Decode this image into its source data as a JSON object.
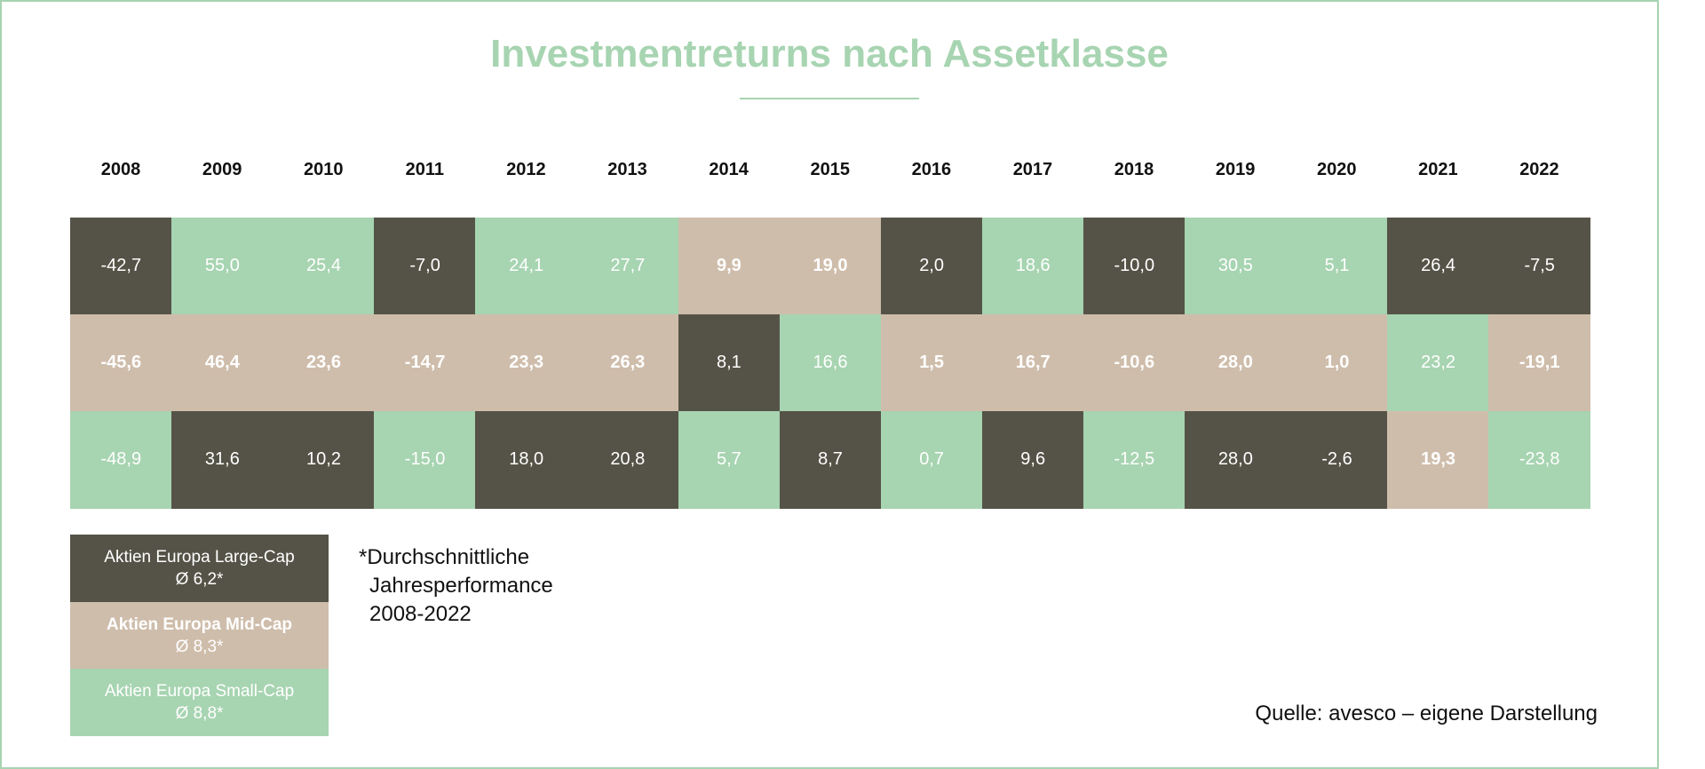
{
  "header": {
    "title": "Investmentreturns nach Assetklasse"
  },
  "assets": [
    {
      "name": "Aktien Europa Large-Cap",
      "average": "Ø 6,2*",
      "color": "#555347",
      "bold": false
    },
    {
      "name": "Aktien Europa Mid-Cap",
      "average": "Ø 8,3*",
      "color": "#cfbdab",
      "bold": true
    },
    {
      "name": "Aktien Europa Small-Cap",
      "average": "Ø 8,8*",
      "color": "#a7d4b1",
      "bold": false
    }
  ],
  "table": {
    "years": [
      "2008",
      "2009",
      "2010",
      "2011",
      "2012",
      "2013",
      "2014",
      "2015",
      "2016",
      "2017",
      "2018",
      "2019",
      "2020",
      "2021",
      "2022"
    ],
    "rows": [
      [
        {
          "text": "-42,7",
          "asset": 0
        },
        {
          "text": "55,0",
          "asset": 2
        },
        {
          "text": "25,4",
          "asset": 2
        },
        {
          "text": "-7,0",
          "asset": 0
        },
        {
          "text": "24,1",
          "asset": 2
        },
        {
          "text": "27,7",
          "asset": 2
        },
        {
          "text": "9,9",
          "asset": 1
        },
        {
          "text": "19,0",
          "asset": 1
        },
        {
          "text": "2,0",
          "asset": 0
        },
        {
          "text": "18,6",
          "asset": 2
        },
        {
          "text": "-10,0",
          "asset": 0
        },
        {
          "text": "30,5",
          "asset": 2
        },
        {
          "text": "5,1",
          "asset": 2
        },
        {
          "text": "26,4",
          "asset": 0
        },
        {
          "text": "-7,5",
          "asset": 0
        }
      ],
      [
        {
          "text": "-45,6",
          "asset": 1
        },
        {
          "text": "46,4",
          "asset": 1
        },
        {
          "text": "23,6",
          "asset": 1
        },
        {
          "text": "-14,7",
          "asset": 1
        },
        {
          "text": "23,3",
          "asset": 1
        },
        {
          "text": "26,3",
          "asset": 1
        },
        {
          "text": "8,1",
          "asset": 0
        },
        {
          "text": "16,6",
          "asset": 2
        },
        {
          "text": "1,5",
          "asset": 1
        },
        {
          "text": "16,7",
          "asset": 1
        },
        {
          "text": "-10,6",
          "asset": 1
        },
        {
          "text": "28,0",
          "asset": 1
        },
        {
          "text": "1,0",
          "asset": 1
        },
        {
          "text": "23,2",
          "asset": 2
        },
        {
          "text": "-19,1",
          "asset": 1
        }
      ],
      [
        {
          "text": "-48,9",
          "asset": 2
        },
        {
          "text": "31,6",
          "asset": 0
        },
        {
          "text": "10,2",
          "asset": 0
        },
        {
          "text": "-15,0",
          "asset": 2
        },
        {
          "text": "18,0",
          "asset": 0
        },
        {
          "text": "20,8",
          "asset": 0
        },
        {
          "text": "5,7",
          "asset": 2
        },
        {
          "text": "8,7",
          "asset": 0
        },
        {
          "text": "0,7",
          "asset": 2
        },
        {
          "text": "9,6",
          "asset": 0
        },
        {
          "text": "-12,5",
          "asset": 2
        },
        {
          "text": "28,0",
          "asset": 0
        },
        {
          "text": "-2,6",
          "asset": 0
        },
        {
          "text": "19,3",
          "asset": 1
        },
        {
          "text": "-23,8",
          "asset": 2
        }
      ]
    ]
  },
  "footnote": [
    "*Durchschnittliche",
    "Jahresperformance",
    "2008-2022"
  ],
  "source": "Quelle: avesco – eigene Darstellung"
}
